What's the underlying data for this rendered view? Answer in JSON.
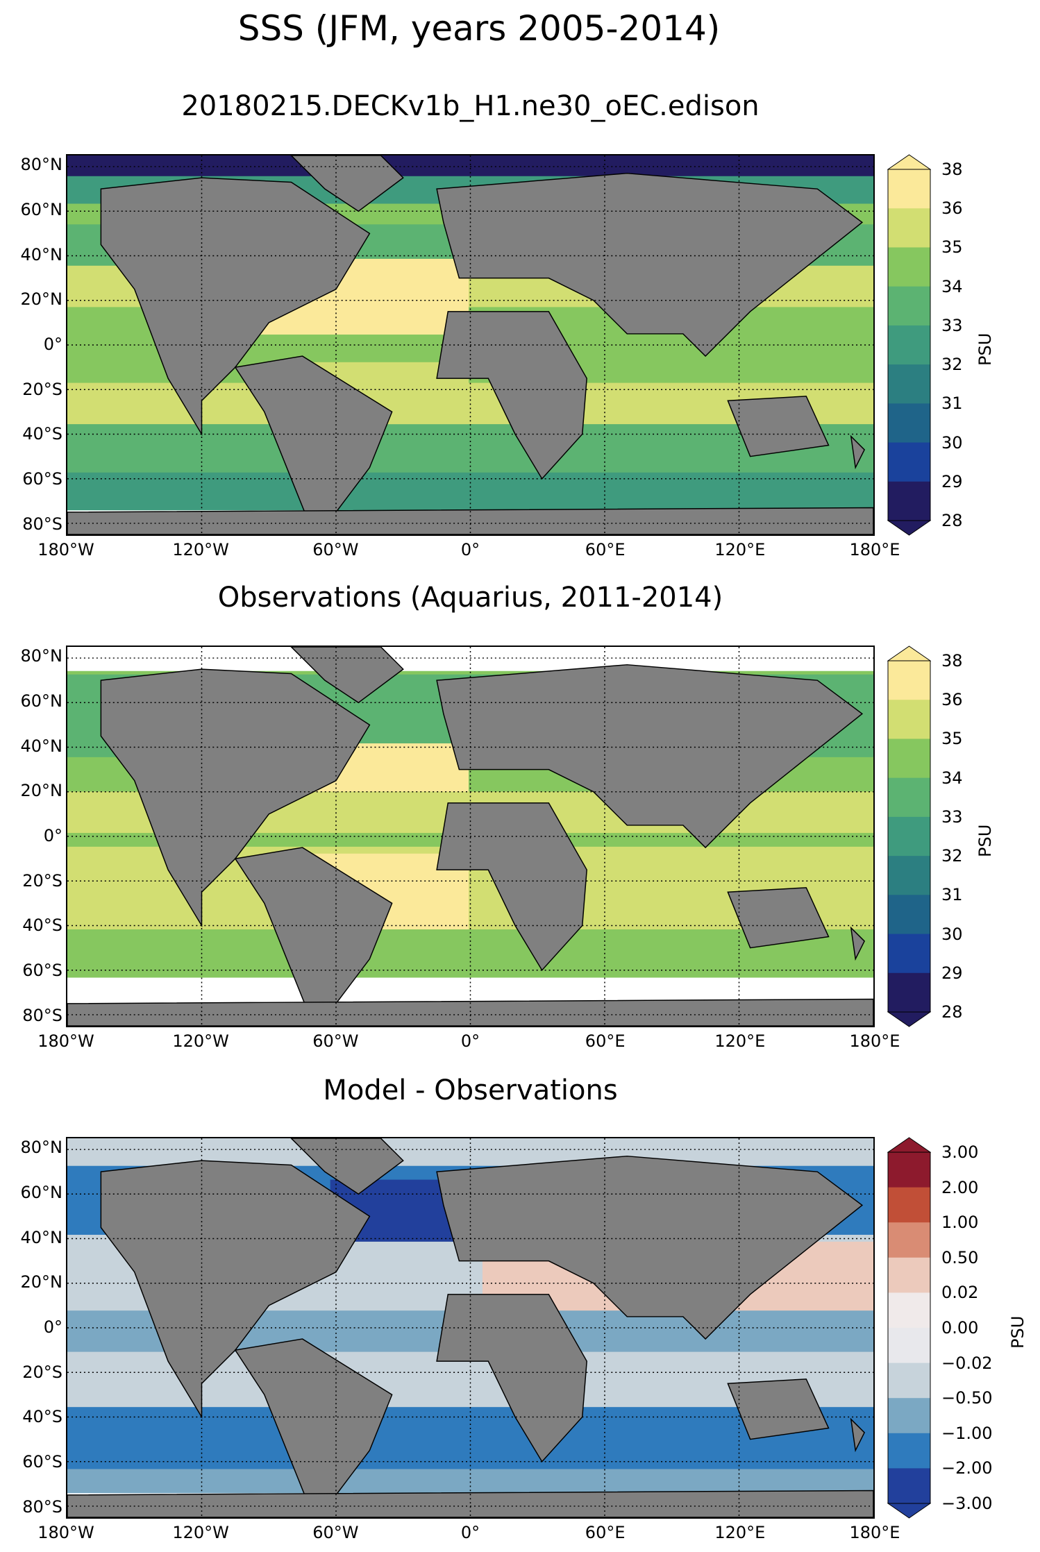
{
  "title": "SSS (JFM, years 2005-2014)",
  "colorbar_unit": "PSU",
  "x_ticks": [
    "180°W",
    "120°W",
    "60°W",
    "0°",
    "60°E",
    "120°E",
    "180°E"
  ],
  "y_ticks": [
    "80°N",
    "60°N",
    "40°N",
    "20°N",
    "0°",
    "20°S",
    "40°S",
    "60°S",
    "80°S"
  ],
  "panels": [
    {
      "title": "20180215.DECKv1b_H1.ne30_oEC.edison",
      "colorbar": {
        "labels": [
          "38",
          "36",
          "35",
          "34",
          "33",
          "32",
          "31",
          "30",
          "29",
          "28"
        ],
        "colors": [
          "#fbe99a",
          "#d2de72",
          "#86c75f",
          "#5cb372",
          "#3f9b7e",
          "#2c7f81",
          "#1f6489",
          "#1a429c",
          "#221c60"
        ]
      }
    },
    {
      "title": "Observations (Aquarius, 2011-2014)",
      "colorbar": {
        "labels": [
          "38",
          "36",
          "35",
          "34",
          "33",
          "32",
          "31",
          "30",
          "29",
          "28"
        ],
        "colors": [
          "#fbe99a",
          "#d2de72",
          "#86c75f",
          "#5cb372",
          "#3f9b7e",
          "#2c7f81",
          "#1f6489",
          "#1a429c",
          "#221c60"
        ]
      }
    },
    {
      "title": "Model - Observations",
      "colorbar": {
        "labels": [
          "3.00",
          "2.00",
          "1.00",
          "0.50",
          "0.02",
          "0.00",
          "−0.02",
          "−0.50",
          "−1.00",
          "−2.00",
          "−3.00"
        ],
        "colors": [
          "#8d1a2d",
          "#c14f37",
          "#d98c74",
          "#eccabc",
          "#f0eaea",
          "#e8e8ec",
          "#c7d3db",
          "#7ba8c3",
          "#2f7bbd",
          "#22409c"
        ]
      }
    }
  ],
  "chart_data": {
    "type": "heatmap",
    "xlim": [
      "180°W",
      "180°E"
    ],
    "ylim": [
      "85°S",
      "85°N"
    ],
    "grid": true,
    "colorbar_ranges": [
      [
        28,
        38
      ],
      [
        28,
        38
      ],
      [
        -3.0,
        3.0
      ]
    ]
  }
}
